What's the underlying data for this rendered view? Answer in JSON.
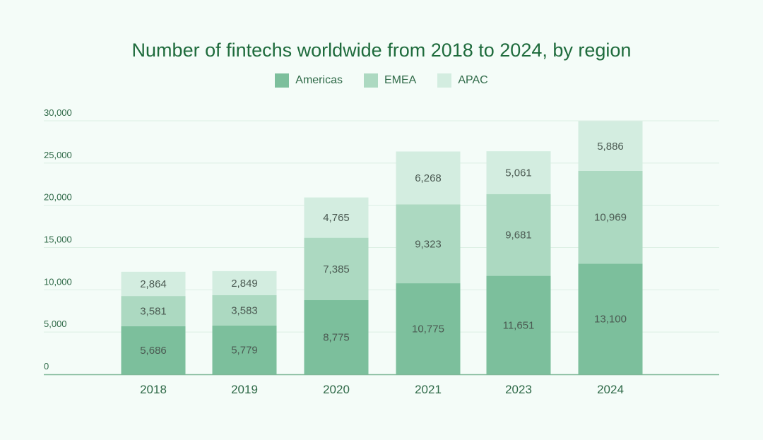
{
  "colors": {
    "background": "#f4fcf8",
    "title": "#1e6b3c",
    "gridline": "#dcefe4",
    "axis": "#7fb897",
    "Americas": "#7cbf9c",
    "EMEA": "#acd9c1",
    "APAC": "#d3ede0"
  },
  "chart_data": {
    "type": "bar",
    "stacked": true,
    "title": "Number of fintechs worldwide from 2018 to 2024, by region",
    "xlabel": "",
    "ylabel": "",
    "categories": [
      "2018",
      "2019",
      "2020",
      "2021",
      "2023",
      "2024"
    ],
    "series": [
      {
        "name": "Americas",
        "values": [
          5686,
          5779,
          8775,
          10775,
          11651,
          13100
        ]
      },
      {
        "name": "EMEA",
        "values": [
          3581,
          3583,
          7385,
          9323,
          9681,
          10969
        ]
      },
      {
        "name": "APAC",
        "values": [
          2864,
          2849,
          4765,
          6268,
          5061,
          5886
        ]
      }
    ],
    "segment_labels": [
      [
        "5,686",
        "5,779",
        "8,775",
        "10,775",
        "11,651",
        "13,100"
      ],
      [
        "3,581",
        "3,583",
        "7,385",
        "9,323",
        "9,681",
        "10,969"
      ],
      [
        "2,864",
        "2,849",
        "4,765",
        "6,268",
        "5,061",
        "5,886"
      ]
    ],
    "ylim": [
      0,
      30000
    ],
    "yticks": [
      0,
      5000,
      10000,
      15000,
      20000,
      25000,
      30000
    ],
    "ytick_labels": [
      "0",
      "5,000",
      "10,000",
      "15,000",
      "20,000",
      "25,000",
      "30,000"
    ],
    "grid": true,
    "legend_position": "top-center"
  }
}
